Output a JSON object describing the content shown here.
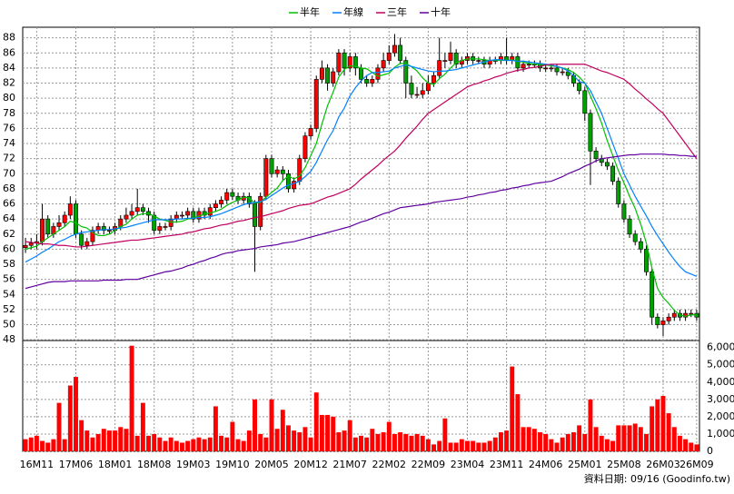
{
  "chart_data": [
    {
      "type": "candlestick",
      "grid": true,
      "up_color": "#ff0000",
      "down_color": "#00a000",
      "categories": [
        null,
        null,
        "16M11",
        null,
        null,
        null,
        null,
        null,
        null,
        "17M06",
        null,
        null,
        null,
        null,
        null,
        null,
        "18M01",
        null,
        null,
        null,
        null,
        null,
        null,
        "18M08",
        null,
        null,
        null,
        null,
        null,
        null,
        "19M03",
        null,
        null,
        null,
        null,
        null,
        null,
        "19M10",
        null,
        null,
        null,
        null,
        null,
        null,
        "20M05",
        null,
        null,
        null,
        null,
        null,
        null,
        "20M12",
        null,
        null,
        null,
        null,
        null,
        null,
        "21M07",
        null,
        null,
        null,
        null,
        null,
        null,
        "22M02",
        null,
        null,
        null,
        null,
        null,
        null,
        "22M09",
        null,
        null,
        null,
        null,
        null,
        null,
        "23M04",
        null,
        null,
        null,
        null,
        null,
        null,
        "23M11",
        null,
        null,
        null,
        null,
        null,
        null,
        "24M06",
        null,
        null,
        null,
        null,
        null,
        null,
        "25M01",
        null,
        null,
        null,
        null,
        null,
        null,
        "25M08",
        null,
        null,
        null,
        null,
        null,
        null,
        "26M03",
        null,
        null,
        null,
        null,
        null,
        "26M09"
      ],
      "open": [
        60.2,
        60.5,
        60.8,
        61,
        64,
        62,
        63,
        63.5,
        64.5,
        66,
        62,
        60.5,
        61,
        62.5,
        63,
        62.5,
        62.5,
        63,
        64,
        64.5,
        65,
        65.5,
        65,
        64.5,
        62.5,
        63,
        63,
        64,
        64.5,
        64.5,
        65,
        64,
        65,
        64.5,
        65.5,
        66,
        66.5,
        67.5,
        67,
        66.5,
        67,
        66,
        63,
        67,
        72,
        70,
        70.5,
        70,
        68,
        69,
        72,
        75,
        76,
        82.5,
        84,
        82,
        83.5,
        86,
        84,
        85.5,
        84,
        82.5,
        82,
        82.5,
        84,
        85,
        86,
        87,
        85,
        82,
        80.5,
        80.5,
        81,
        82,
        83,
        85,
        85,
        86,
        84.5,
        85,
        85.5,
        85,
        85,
        84.5,
        85,
        85,
        85.5,
        85,
        85.5,
        84,
        84.5,
        84.5,
        84.5,
        84,
        84,
        84,
        83.5,
        83.5,
        83,
        82,
        81,
        78,
        73,
        72,
        71.5,
        71,
        69,
        66,
        64,
        62,
        61,
        60,
        57,
        51,
        50,
        50.5,
        51,
        51.5,
        51,
        51.5,
        51.5
      ],
      "high": [
        61.5,
        61.5,
        62,
        66,
        64.5,
        63.5,
        64.5,
        65,
        67,
        66.5,
        62.5,
        61.5,
        63,
        63.5,
        63.5,
        63,
        63.5,
        64.5,
        65.5,
        66,
        68,
        66,
        65.5,
        65,
        63.5,
        63.5,
        64.5,
        65,
        65,
        65.5,
        65.5,
        65.5,
        65.5,
        66,
        66.5,
        67,
        68,
        68,
        67.5,
        67.5,
        67.5,
        66.5,
        67.5,
        72.5,
        72.5,
        71,
        71,
        70.5,
        69.5,
        72.5,
        75.5,
        76.5,
        83,
        85,
        84.5,
        84,
        86.5,
        86.5,
        86,
        86,
        84.5,
        83,
        83,
        84.5,
        86,
        87,
        88.5,
        88,
        85.5,
        83,
        81.5,
        82,
        83,
        83.5,
        88,
        86,
        87.5,
        86.5,
        85.5,
        86,
        86,
        85.5,
        85.5,
        85.5,
        85.5,
        86,
        88,
        86,
        86,
        85,
        85,
        85,
        85,
        84.5,
        84.5,
        84.5,
        84,
        84,
        83.5,
        82.5,
        81.5,
        78.5,
        73.5,
        72.5,
        72,
        71.5,
        69.5,
        66.5,
        64.5,
        62.5,
        61.5,
        60.5,
        57.5,
        51.5,
        51,
        51.5,
        52,
        52,
        52,
        52,
        52
      ],
      "low": [
        59.5,
        60,
        60,
        60.5,
        61.5,
        61.5,
        62.5,
        63,
        64,
        61.5,
        60,
        60,
        60.5,
        62,
        62,
        62,
        62,
        62.5,
        63.5,
        64,
        64.5,
        64.5,
        63.5,
        62,
        62,
        62.5,
        62.5,
        63.5,
        64,
        64,
        63.5,
        63.5,
        64,
        64,
        65,
        65.5,
        66,
        66.5,
        66,
        66,
        65.5,
        57,
        62.5,
        66.5,
        69.5,
        69.5,
        69,
        67.5,
        67.5,
        68.5,
        71.5,
        74.5,
        75.5,
        82,
        81,
        81.5,
        83,
        83,
        83.5,
        83,
        82,
        81.5,
        81.5,
        82,
        83.5,
        84.5,
        85.5,
        84.5,
        80,
        80,
        80,
        80,
        80.5,
        81.5,
        82.5,
        84,
        84.5,
        84,
        84,
        84.5,
        84.5,
        84.5,
        84,
        84,
        84.5,
        84.5,
        84.5,
        84.5,
        83.5,
        83.5,
        84,
        84,
        83.5,
        83.5,
        83.5,
        83,
        83,
        82.5,
        81.5,
        80.5,
        77,
        68.5,
        71.5,
        71,
        70.5,
        68.5,
        65.5,
        63.5,
        61.5,
        60.5,
        59.5,
        56.5,
        50,
        49.5,
        48.5,
        50,
        50.5,
        50.5,
        50.5,
        51,
        50.5
      ],
      "close": [
        60.5,
        60.8,
        61,
        64,
        62,
        63,
        63.5,
        64.5,
        66,
        62,
        60.5,
        61,
        62.5,
        63,
        62.5,
        62.5,
        63,
        64,
        64.5,
        65,
        65.5,
        65,
        64.5,
        62.5,
        63,
        63,
        64,
        64.5,
        64.5,
        65,
        64,
        65,
        64.5,
        65.5,
        66,
        66.5,
        67.5,
        67,
        66.5,
        67,
        66,
        63,
        67,
        72,
        70,
        70.5,
        70,
        68,
        69,
        72,
        75,
        76,
        82.5,
        84,
        82,
        83.5,
        86,
        84,
        85.5,
        84,
        82.5,
        82,
        82.5,
        84,
        85,
        86,
        87,
        85,
        82,
        80.5,
        80.5,
        81,
        82,
        83,
        85,
        85,
        86,
        84.5,
        85,
        85.5,
        85,
        85,
        84.5,
        85,
        85,
        85.5,
        85,
        85.5,
        84,
        84.5,
        84.5,
        84.5,
        84,
        84,
        84,
        83.5,
        83.5,
        83,
        82,
        81,
        78,
        73,
        72,
        71.5,
        71,
        69,
        66,
        64,
        62,
        61,
        60,
        57,
        51,
        50,
        50.5,
        51,
        51.5,
        51,
        51.5,
        51.5,
        51
      ],
      "ylim": [
        47.9,
        89.4
      ],
      "yticks": [
        48,
        50,
        52,
        54,
        56,
        58,
        60,
        62,
        64,
        66,
        68,
        70,
        72,
        74,
        76,
        78,
        80,
        82,
        84,
        86,
        88
      ],
      "series": [
        {
          "name": "半年",
          "color": "#00c000",
          "values": [
            60,
            60.2,
            60.4,
            61,
            61.5,
            62,
            62.5,
            63,
            63.7,
            63.5,
            63,
            62.8,
            62.2,
            61.8,
            61.8,
            62,
            62.5,
            63,
            63.3,
            64,
            64.5,
            64.7,
            64.7,
            64.4,
            64,
            63.8,
            63.6,
            63.6,
            63.7,
            64,
            64.1,
            64.4,
            64.6,
            64.8,
            65,
            65.3,
            65.8,
            66.2,
            66.5,
            66.9,
            66.8,
            66.1,
            66.2,
            66.9,
            67.5,
            68.1,
            69.1,
            69.7,
            69.3,
            69.7,
            70.8,
            72.4,
            74,
            76.6,
            79,
            80.8,
            82.8,
            83.8,
            84.3,
            84.2,
            84,
            83.9,
            83.4,
            82.9,
            83.1,
            83.3,
            84.1,
            84.6,
            84.6,
            84.2,
            83.6,
            82.7,
            82,
            81.8,
            82.6,
            83.2,
            84,
            84.7,
            85,
            85.2,
            85.2,
            85.2,
            85.1,
            85,
            85,
            85,
            85,
            85.1,
            84.9,
            84.8,
            84.6,
            84.5,
            84.5,
            84.4,
            84.3,
            84.2,
            84,
            83.8,
            83.4,
            82.8,
            82,
            80.3,
            78.6,
            76.7,
            74.4,
            72.4,
            70.4,
            68.8,
            67,
            65.4,
            63.3,
            60.8,
            57.5,
            54.8,
            53.6,
            52.8,
            51.9,
            51.3,
            51.1,
            51.3,
            51.3
          ]
        },
        {
          "name": "年線",
          "color": "#0080ff",
          "values": [
            58.3,
            58.7,
            59.1,
            59.6,
            60,
            60.5,
            61,
            61.3,
            61.7,
            62,
            62.2,
            62.3,
            62.4,
            62.5,
            62.6,
            62.6,
            62.7,
            62.8,
            62.9,
            63.1,
            63.3,
            63.5,
            63.7,
            63.9,
            63.9,
            63.9,
            63.9,
            64,
            64,
            64.1,
            64.1,
            64.2,
            64.2,
            64.3,
            64.5,
            64.7,
            65,
            65.3,
            65.6,
            65.9,
            66.1,
            66.2,
            66.3,
            66.6,
            67.1,
            67.6,
            68.1,
            68.5,
            68.7,
            69,
            69.6,
            70.3,
            71.5,
            73,
            74.5,
            75.7,
            77.5,
            78.7,
            80.3,
            81.4,
            82.3,
            83,
            83.4,
            83.4,
            83.5,
            83.6,
            84,
            84.2,
            84.4,
            84.2,
            84,
            83.8,
            83.6,
            83.5,
            83.6,
            83.6,
            83.7,
            83.8,
            84,
            84.2,
            84.4,
            84.6,
            84.8,
            85,
            85.1,
            85.1,
            85,
            85,
            84.9,
            84.9,
            84.8,
            84.7,
            84.6,
            84.5,
            84.4,
            84.2,
            84,
            83.6,
            83,
            82.2,
            82,
            81,
            79.5,
            78,
            76,
            74,
            72,
            70,
            68.5,
            67,
            65.7,
            64.4,
            63,
            61.8,
            60.7,
            59.6,
            58.6,
            57.7,
            57,
            56.7,
            56.4
          ]
        },
        {
          "name": "三年",
          "color": "#c00060",
          "values": [
            61,
            60.9,
            60.8,
            60.7,
            60.7,
            60.6,
            60.5,
            60.5,
            60.4,
            60.3,
            60.3,
            60.4,
            60.5,
            60.6,
            60.7,
            60.8,
            60.9,
            61,
            61.1,
            61.2,
            61.2,
            61.3,
            61.4,
            61.5,
            61.6,
            61.7,
            61.8,
            61.9,
            62,
            62.2,
            62.3,
            62.5,
            62.7,
            62.8,
            63,
            63.2,
            63.3,
            63.5,
            63.7,
            63.8,
            64,
            64.2,
            64.3,
            64.5,
            64.7,
            64.9,
            65.1,
            65.4,
            65.6,
            65.8,
            65.9,
            66,
            66.3,
            66.6,
            66.9,
            67.1,
            67.4,
            67.7,
            68,
            68.6,
            69.3,
            69.9,
            70.5,
            71.1,
            71.8,
            72.4,
            73,
            73.8,
            74.7,
            75.5,
            76.3,
            77.2,
            78,
            78.5,
            79,
            79.5,
            80,
            80.5,
            81,
            81.5,
            81.8,
            82,
            82.3,
            82.5,
            82.8,
            83,
            83.3,
            83.5,
            83.7,
            83.8,
            84,
            84.1,
            84.2,
            84.4,
            84.5,
            84.5,
            84.5,
            84.5,
            84.5,
            84.5,
            84.5,
            84.2,
            83.9,
            83.6,
            83.4,
            83.1,
            82.8,
            82.5,
            81.9,
            81.2,
            80.6,
            79.9,
            79.3,
            78.6,
            78,
            77,
            76,
            75,
            74,
            73,
            72
          ]
        },
        {
          "name": "十年",
          "color": "#6000a0",
          "values": [
            54.8,
            55,
            55.2,
            55.4,
            55.6,
            55.7,
            55.7,
            55.7,
            55.8,
            55.8,
            55.8,
            55.8,
            55.8,
            55.8,
            55.9,
            55.9,
            55.9,
            55.9,
            56,
            56,
            56,
            56.2,
            56.4,
            56.6,
            56.8,
            57,
            57.1,
            57.3,
            57.5,
            57.8,
            58,
            58.3,
            58.5,
            58.8,
            59,
            59.3,
            59.5,
            59.6,
            59.8,
            59.9,
            60,
            60.1,
            60.3,
            60.4,
            60.5,
            60.6,
            60.8,
            60.9,
            61,
            61.2,
            61.4,
            61.6,
            61.8,
            62,
            62.2,
            62.4,
            62.6,
            62.8,
            63,
            63.3,
            63.6,
            63.8,
            64.1,
            64.4,
            64.7,
            64.9,
            65.2,
            65.5,
            65.6,
            65.7,
            65.8,
            65.9,
            66,
            66.2,
            66.3,
            66.4,
            66.5,
            66.6,
            66.7,
            66.9,
            67,
            67.2,
            67.3,
            67.5,
            67.6,
            67.8,
            67.9,
            68.1,
            68.2,
            68.4,
            68.5,
            68.7,
            68.8,
            68.9,
            69,
            69.3,
            69.6,
            70,
            70.3,
            70.6,
            71,
            71.3,
            71.7,
            72,
            72.1,
            72.2,
            72.3,
            72.4,
            72.5,
            72.5,
            72.6,
            72.6,
            72.6,
            72.6,
            72.6,
            72.5,
            72.5,
            72.4,
            72.4,
            72.3,
            72.3
          ]
        }
      ]
    },
    {
      "type": "bar",
      "color": "#ff0000",
      "values": [
        700,
        800,
        900,
        600,
        500,
        700,
        2800,
        700,
        3800,
        4300,
        1800,
        1200,
        800,
        1000,
        1300,
        1200,
        1200,
        1400,
        1300,
        6100,
        900,
        2800,
        900,
        1000,
        800,
        600,
        800,
        600,
        500,
        600,
        700,
        800,
        700,
        800,
        2600,
        900,
        800,
        1700,
        700,
        600,
        1200,
        3000,
        1000,
        800,
        3000,
        1300,
        2400,
        1500,
        1200,
        1100,
        1400,
        800,
        3400,
        2100,
        2100,
        2000,
        1100,
        1200,
        1800,
        800,
        900,
        800,
        1300,
        1000,
        1100,
        1700,
        1000,
        1100,
        1000,
        900,
        1000,
        900,
        700,
        400,
        600,
        1900,
        500,
        500,
        700,
        600,
        600,
        500,
        500,
        600,
        800,
        1100,
        1200,
        4900,
        3300,
        1400,
        1400,
        1300,
        1100,
        1000,
        700,
        500,
        800,
        1000,
        1100,
        1500,
        1000,
        3000,
        1400,
        900,
        700,
        600,
        1500,
        1500,
        1500,
        1600,
        1400,
        1000,
        2600,
        3000,
        3200,
        2200,
        1400,
        900,
        700,
        500,
        400
      ],
      "ylim": [
        0,
        6400
      ],
      "yticks": [
        0,
        {
          "value": 1000,
          "label": "1,000"
        },
        {
          "value": 2000,
          "label": "2,000"
        },
        {
          "value": 3000,
          "label": "3,000"
        },
        {
          "value": 4000,
          "label": "4,000"
        },
        {
          "value": 5000,
          "label": "5,000"
        },
        {
          "value": 6000,
          "label": "6,000"
        }
      ]
    }
  ],
  "footer": "資料日期: 09/16  (Goodinfo.tw)"
}
